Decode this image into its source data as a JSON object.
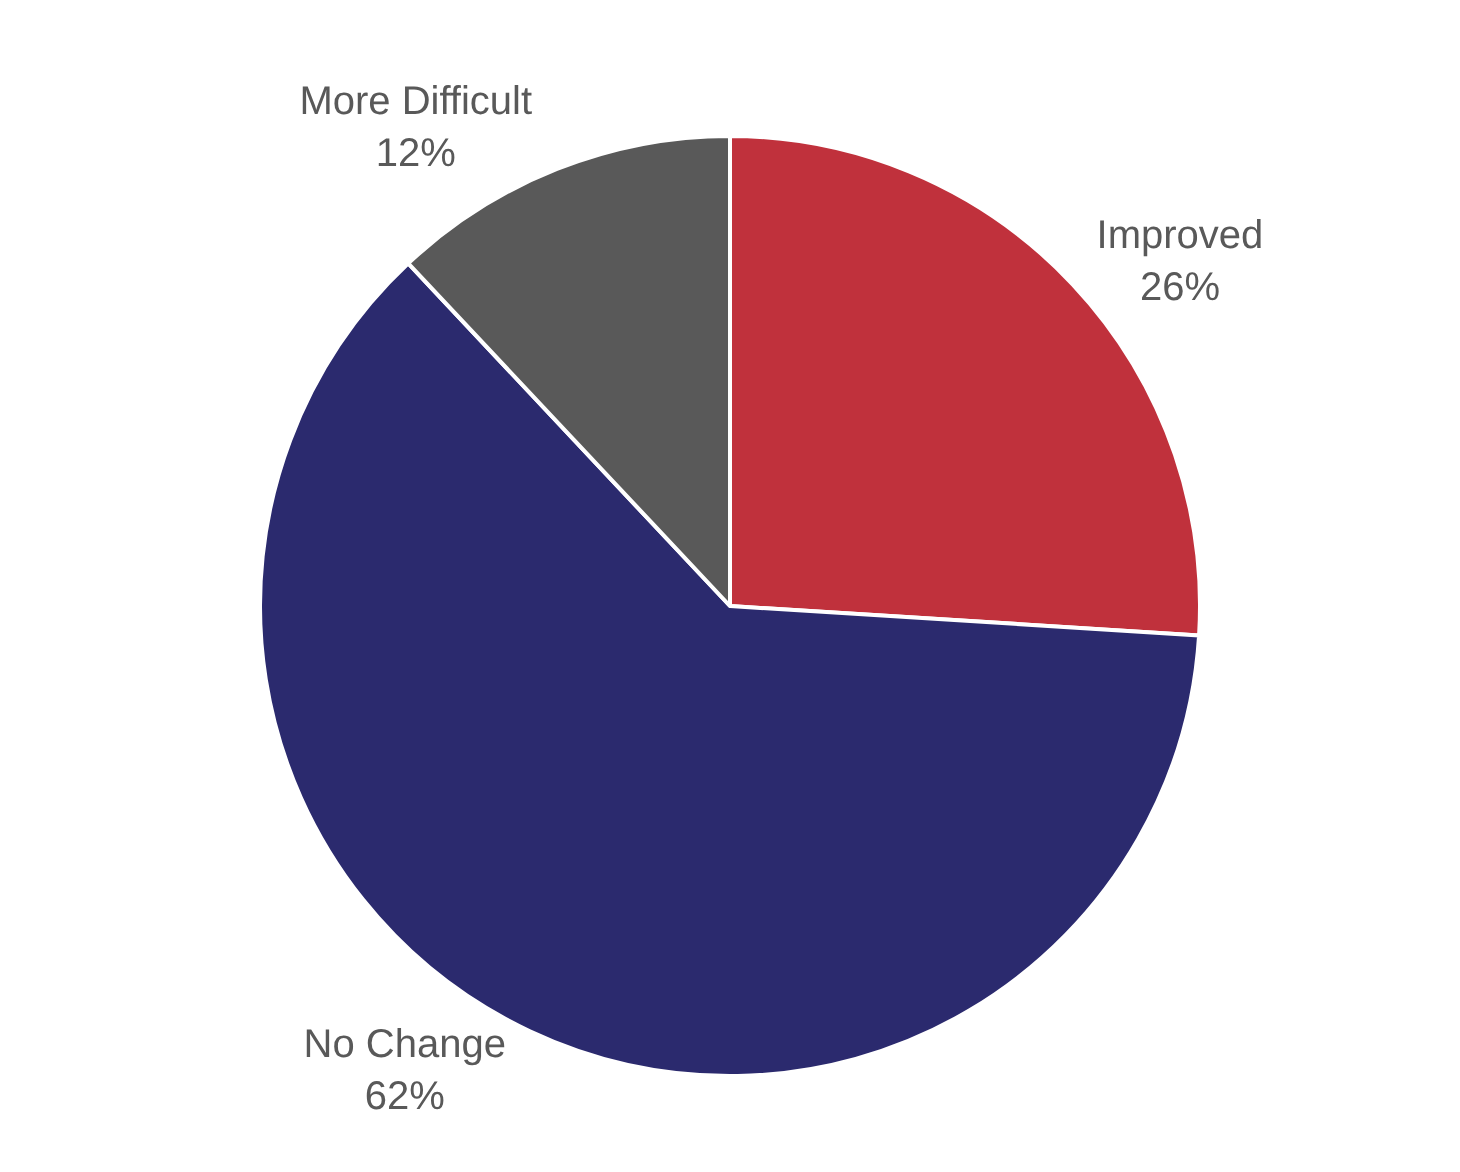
{
  "chart_data": {
    "type": "pie",
    "categories": [
      "Improved",
      "No Change",
      "More Difficult"
    ],
    "values": [
      26,
      62,
      12
    ],
    "value_labels": [
      "26%",
      "62%",
      "12%"
    ],
    "colors": [
      "#c0313c",
      "#2b2a6e",
      "#595959"
    ],
    "legend": false
  }
}
